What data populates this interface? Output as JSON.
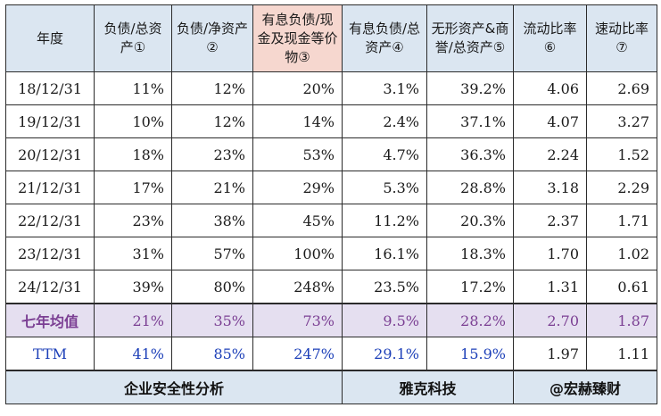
{
  "headers": [
    "年度",
    "负债/总资产①",
    "负债/净资产②",
    "有息负债/现金及现金等价物③",
    "有息负债/总资产④",
    "无形资产&商誉/总资产⑤",
    "流动比率⑥",
    "速动比率⑦"
  ],
  "rows": [
    [
      "18/12/31",
      "11%",
      "12%",
      "20%",
      "3.1%",
      "39.2%",
      "4.06",
      "2.69"
    ],
    [
      "19/12/31",
      "10%",
      "12%",
      "14%",
      "2.4%",
      "37.1%",
      "4.07",
      "3.27"
    ],
    [
      "20/12/31",
      "18%",
      "23%",
      "53%",
      "4.7%",
      "36.3%",
      "2.24",
      "1.52"
    ],
    [
      "21/12/31",
      "17%",
      "21%",
      "29%",
      "5.3%",
      "28.8%",
      "3.18",
      "2.29"
    ],
    [
      "22/12/31",
      "23%",
      "38%",
      "45%",
      "11.2%",
      "20.3%",
      "2.37",
      "1.71"
    ],
    [
      "23/12/31",
      "31%",
      "57%",
      "100%",
      "16.1%",
      "18.3%",
      "1.70",
      "1.02"
    ],
    [
      "24/12/31",
      "39%",
      "80%",
      "248%",
      "23.5%",
      "17.2%",
      "1.31",
      "0.61"
    ]
  ],
  "average": [
    "七年均值",
    "21%",
    "35%",
    "73%",
    "9.5%",
    "28.2%",
    "2.70",
    "1.87"
  ],
  "ttm": [
    "TTM",
    "41%",
    "85%",
    "247%",
    "29.1%",
    "15.9%",
    "1.97",
    "1.11"
  ],
  "footer": {
    "title": "企业安全性分析",
    "company": "雅克科技",
    "author": "@宏赫臻财"
  },
  "colors": {
    "header_bg": "#dbe6f1",
    "highlight_header_bg": "#f6d7cf",
    "average_bg": "#e5dff0",
    "average_text": "#7b3f93",
    "ttm_text": "#1c3fb8"
  }
}
